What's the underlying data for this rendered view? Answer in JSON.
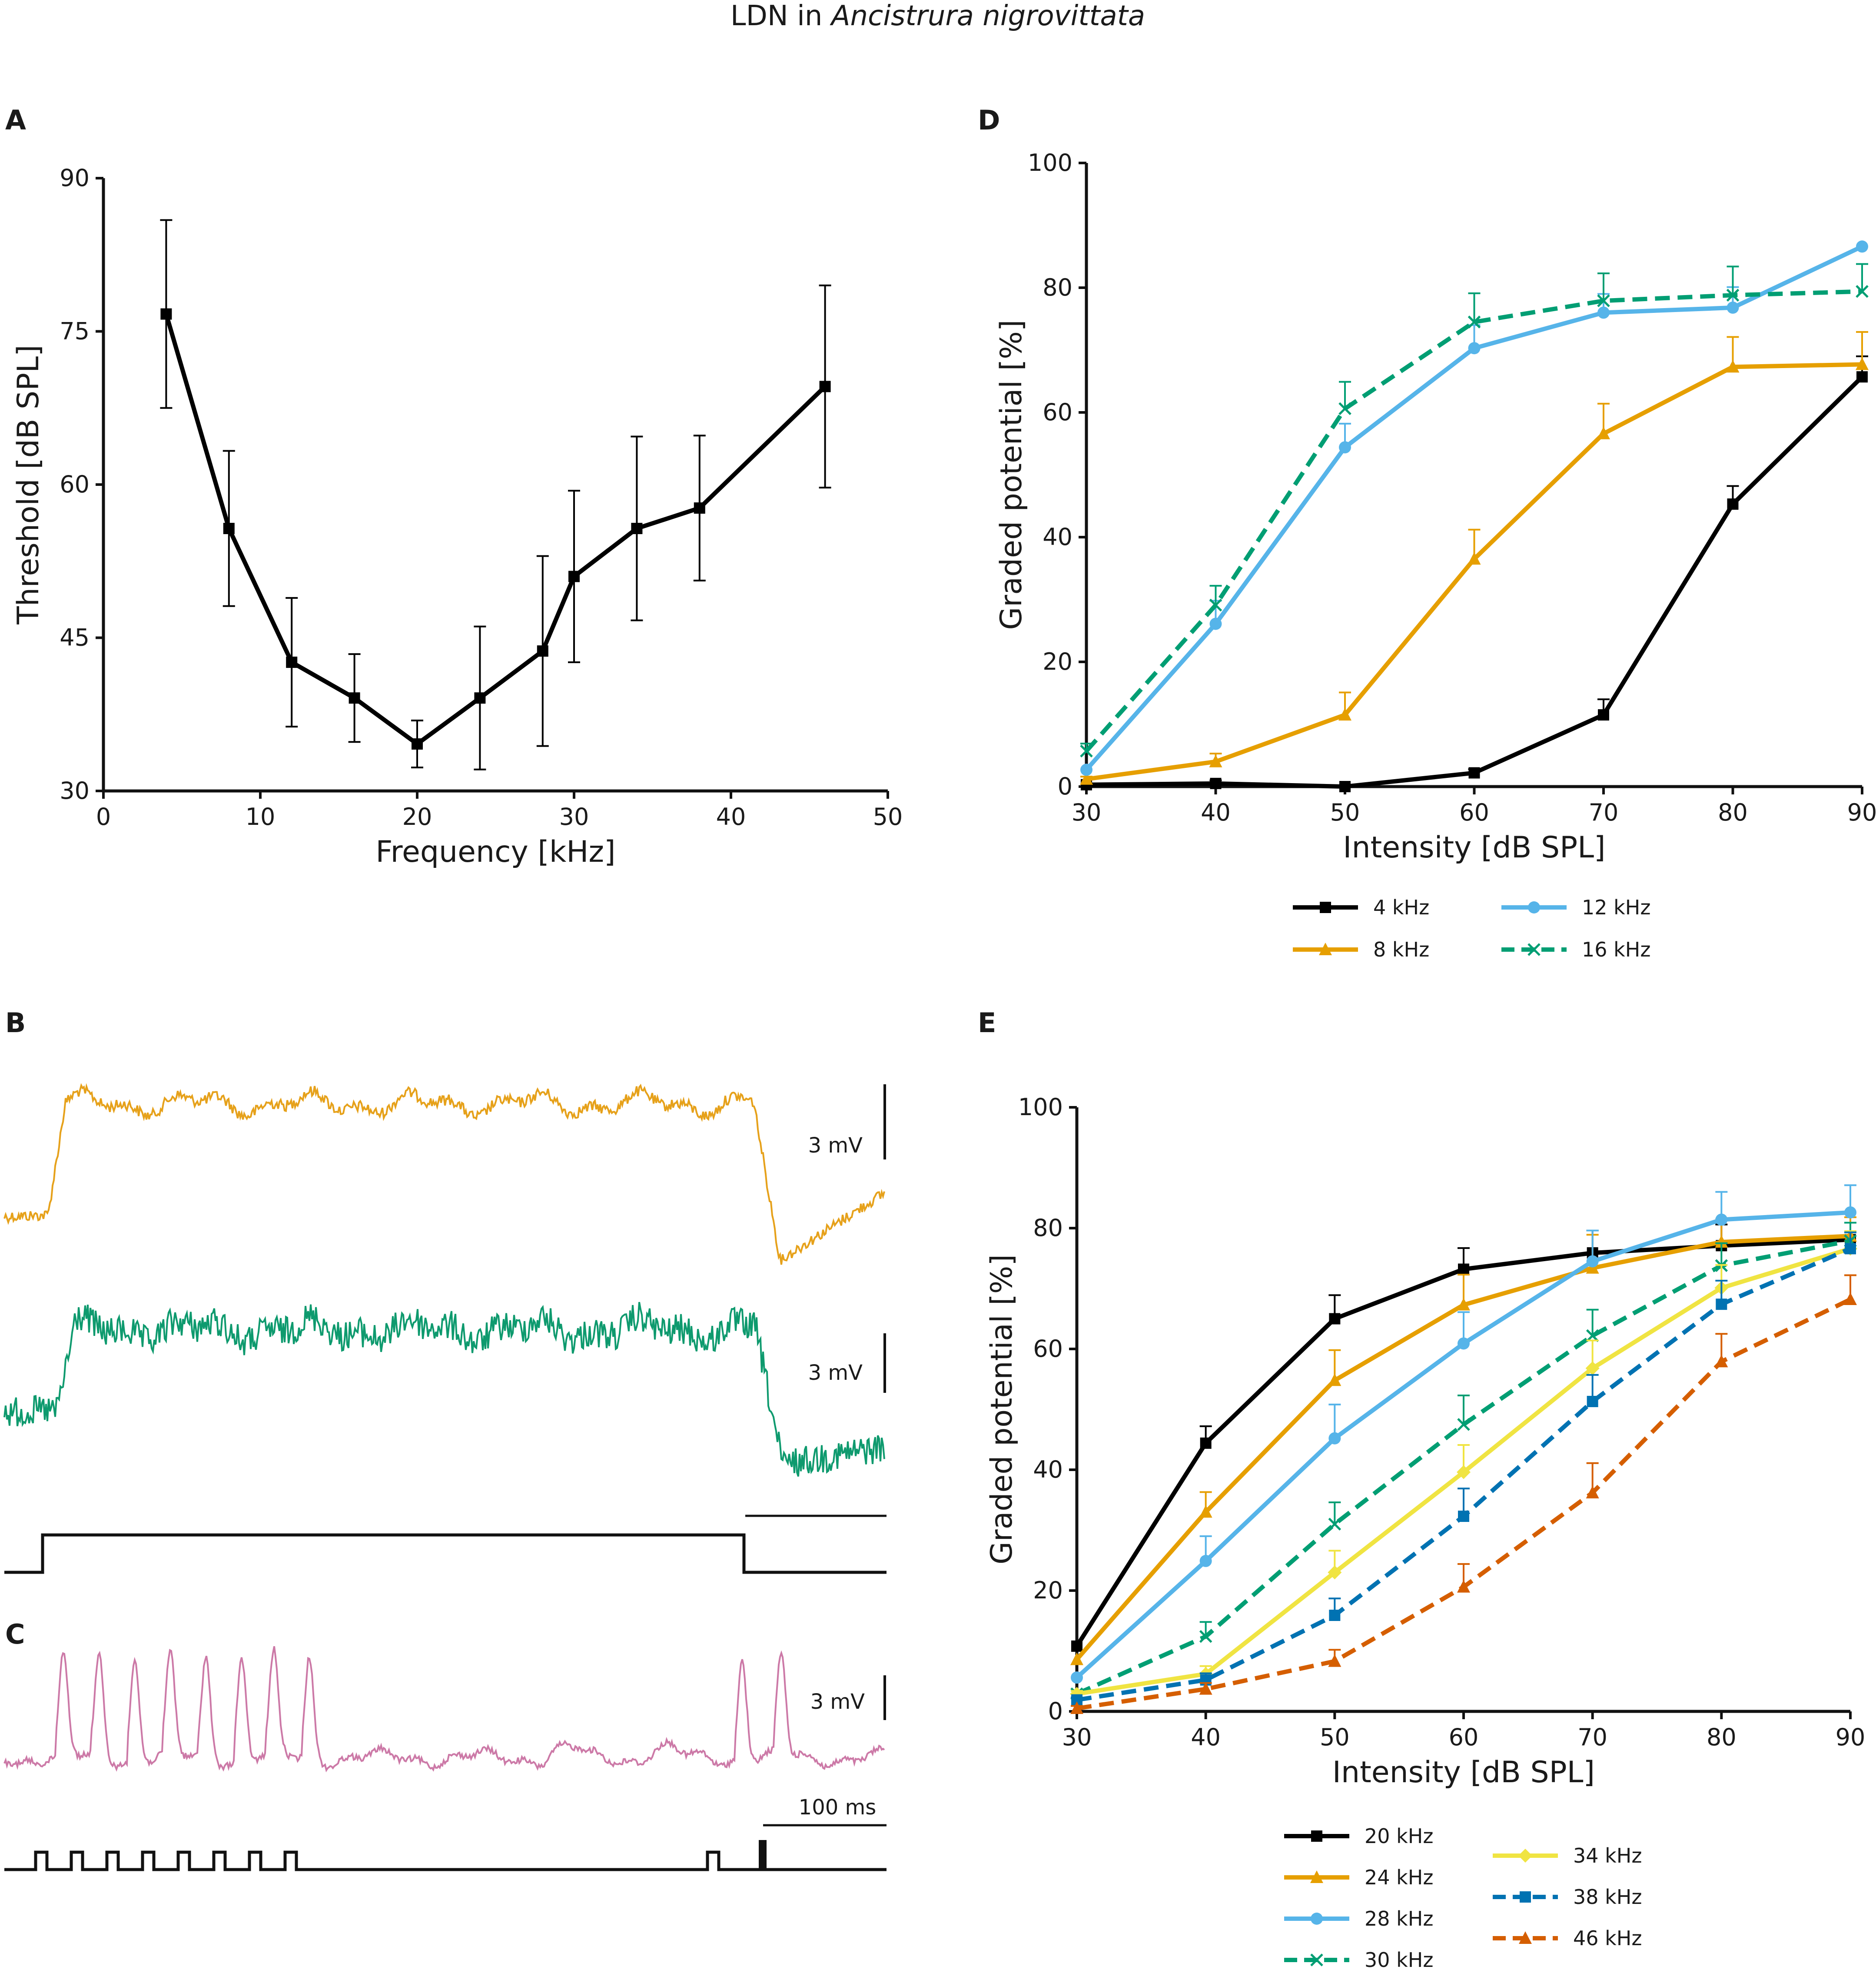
{
  "figure_title_prefix": "LDN in ",
  "figure_title_species": "Ancistrura nigrovittata",
  "colors": {
    "axis": "#111111",
    "k4": "#000000",
    "k8": "#E69F00",
    "k12": "#56B4E9",
    "k16": "#009E73",
    "k20": "#000000",
    "k24": "#E69F00",
    "k28": "#56B4E9",
    "k30": "#009E73",
    "k34": "#F0E442",
    "k38": "#0072B2",
    "k46": "#D55E00",
    "traceB1": "#E6A11A",
    "traceB2": "#0E9A6E",
    "traceC": "#CC79A7"
  },
  "chart_data": [
    {
      "panel": "A",
      "type": "line",
      "title": "",
      "xlabel": "Frequency [kHz]",
      "ylabel": "Threshold [dB SPL]",
      "xlim": [
        0,
        50
      ],
      "ylim": [
        30,
        90
      ],
      "xticks": [
        0,
        10,
        20,
        30,
        40,
        50
      ],
      "yticks": [
        30,
        45,
        60,
        75,
        90
      ],
      "series": [
        {
          "name": "Threshold",
          "color": "#000000",
          "marker": "square",
          "dashed": false,
          "x": [
            4,
            8,
            12,
            16,
            20,
            24,
            28,
            30,
            34,
            38,
            46
          ],
          "y": [
            76.7,
            55.7,
            42.6,
            39.1,
            34.6,
            39.1,
            43.7,
            51.0,
            55.7,
            57.7,
            69.6
          ],
          "err": [
            9.2,
            7.6,
            6.3,
            4.3,
            2.3,
            7.0,
            9.3,
            8.4,
            9.0,
            7.1,
            9.9
          ]
        }
      ]
    },
    {
      "panel": "D",
      "type": "line",
      "title": "",
      "xlabel": "Intensity [dB SPL]",
      "ylabel": "Graded potential [%]",
      "xlim": [
        30,
        90
      ],
      "ylim": [
        0,
        100
      ],
      "xticks": [
        30,
        40,
        50,
        60,
        70,
        80,
        90
      ],
      "yticks": [
        0,
        20,
        40,
        60,
        80,
        100
      ],
      "x": [
        30,
        40,
        50,
        60,
        70,
        80,
        90
      ],
      "series": [
        {
          "name": "4 kHz",
          "color": "#000000",
          "marker": "square",
          "dashed": false,
          "y": [
            0.3,
            0.5,
            0,
            2.2,
            11.5,
            45.3,
            65.7
          ],
          "err": [
            0,
            0.5,
            0,
            0.6,
            2.5,
            2.9,
            3.3
          ]
        },
        {
          "name": "8 kHz",
          "color": "#E69F00",
          "marker": "triangle",
          "dashed": false,
          "y": [
            1.2,
            4.0,
            11.5,
            36.5,
            56.6,
            67.3,
            67.7
          ],
          "err": [
            0.4,
            1.3,
            3.6,
            4.7,
            4.8,
            4.8,
            5.2
          ]
        },
        {
          "name": "12 kHz",
          "color": "#56B4E9",
          "marker": "circle",
          "dashed": false,
          "y": [
            2.7,
            26.1,
            54.4,
            70.3,
            76.0,
            76.8,
            86.6
          ],
          "err": [
            0,
            3.7,
            3.8,
            3.7,
            3.0,
            3.3,
            0
          ]
        },
        {
          "name": "16 kHz",
          "color": "#009E73",
          "marker": "cross",
          "dashed": true,
          "y": [
            5.7,
            29.1,
            60.6,
            74.5,
            77.9,
            78.8,
            79.4
          ],
          "err": [
            1.2,
            3.1,
            4.3,
            4.6,
            4.4,
            4.6,
            4.4
          ]
        }
      ],
      "legend": {
        "position": "bottom",
        "columns": 2
      }
    },
    {
      "panel": "E",
      "type": "line",
      "title": "",
      "xlabel": "Intensity [dB SPL]",
      "ylabel": "Graded potential [%]",
      "xlim": [
        30,
        90
      ],
      "ylim": [
        0,
        100
      ],
      "xticks": [
        30,
        40,
        50,
        60,
        70,
        80,
        90
      ],
      "yticks": [
        0,
        20,
        40,
        60,
        80,
        100
      ],
      "x": [
        30,
        40,
        50,
        60,
        70,
        80,
        90
      ],
      "series": [
        {
          "name": "20 kHz",
          "color": "#000000",
          "marker": "square",
          "dashed": false,
          "y": [
            10.8,
            44.4,
            65.0,
            73.2,
            75.9,
            77.1,
            78.1
          ],
          "err": [
            0,
            2.8,
            3.9,
            3.5,
            3.7,
            3.5,
            2.8
          ]
        },
        {
          "name": "24 kHz",
          "color": "#E69F00",
          "marker": "triangle",
          "dashed": false,
          "y": [
            8.6,
            33.0,
            54.8,
            67.3,
            73.4,
            77.7,
            78.7
          ],
          "err": [
            0,
            3.3,
            5.0,
            5.0,
            5.5,
            3.8,
            3.1
          ]
        },
        {
          "name": "28 kHz",
          "color": "#56B4E9",
          "marker": "circle",
          "dashed": false,
          "y": [
            5.6,
            24.9,
            45.2,
            60.9,
            74.5,
            81.4,
            82.6
          ],
          "err": [
            0,
            4.1,
            5.6,
            5.2,
            5.1,
            4.6,
            4.5
          ]
        },
        {
          "name": "30 kHz",
          "color": "#009E73",
          "marker": "cross",
          "dashed": true,
          "y": [
            2.9,
            12.4,
            31.0,
            47.5,
            62.2,
            73.8,
            77.9
          ],
          "err": [
            0.5,
            2.4,
            3.6,
            4.8,
            4.3,
            3.7,
            3.0
          ]
        },
        {
          "name": "34 kHz",
          "color": "#F0E442",
          "marker": "diamond",
          "dashed": false,
          "y": [
            2.9,
            6.2,
            23.0,
            39.6,
            56.8,
            70.1,
            76.6
          ],
          "err": [
            0.5,
            1.3,
            3.6,
            4.5,
            4.6,
            3.8,
            2.9
          ]
        },
        {
          "name": "38 kHz",
          "color": "#0072B2",
          "marker": "square",
          "dashed": true,
          "y": [
            1.9,
            5.2,
            15.9,
            32.3,
            51.3,
            67.4,
            76.6
          ],
          "err": [
            0.4,
            1.1,
            2.8,
            4.6,
            4.4,
            3.9,
            2.7
          ]
        },
        {
          "name": "46 kHz",
          "color": "#D55E00",
          "marker": "triangle",
          "dashed": true,
          "y": [
            0.5,
            3.7,
            8.3,
            20.6,
            36.2,
            57.9,
            68.2
          ],
          "err": [
            0.4,
            1.0,
            1.9,
            3.8,
            4.9,
            4.6,
            4.0
          ]
        }
      ],
      "legend": {
        "position": "bottom",
        "columns": 2
      }
    }
  ],
  "panel_b": {
    "label": "B",
    "scale_top": "3 mV",
    "scale_bottom": "3 mV"
  },
  "panel_c": {
    "label": "C",
    "scale_voltage": "3 mV",
    "scale_time": "100 ms"
  }
}
